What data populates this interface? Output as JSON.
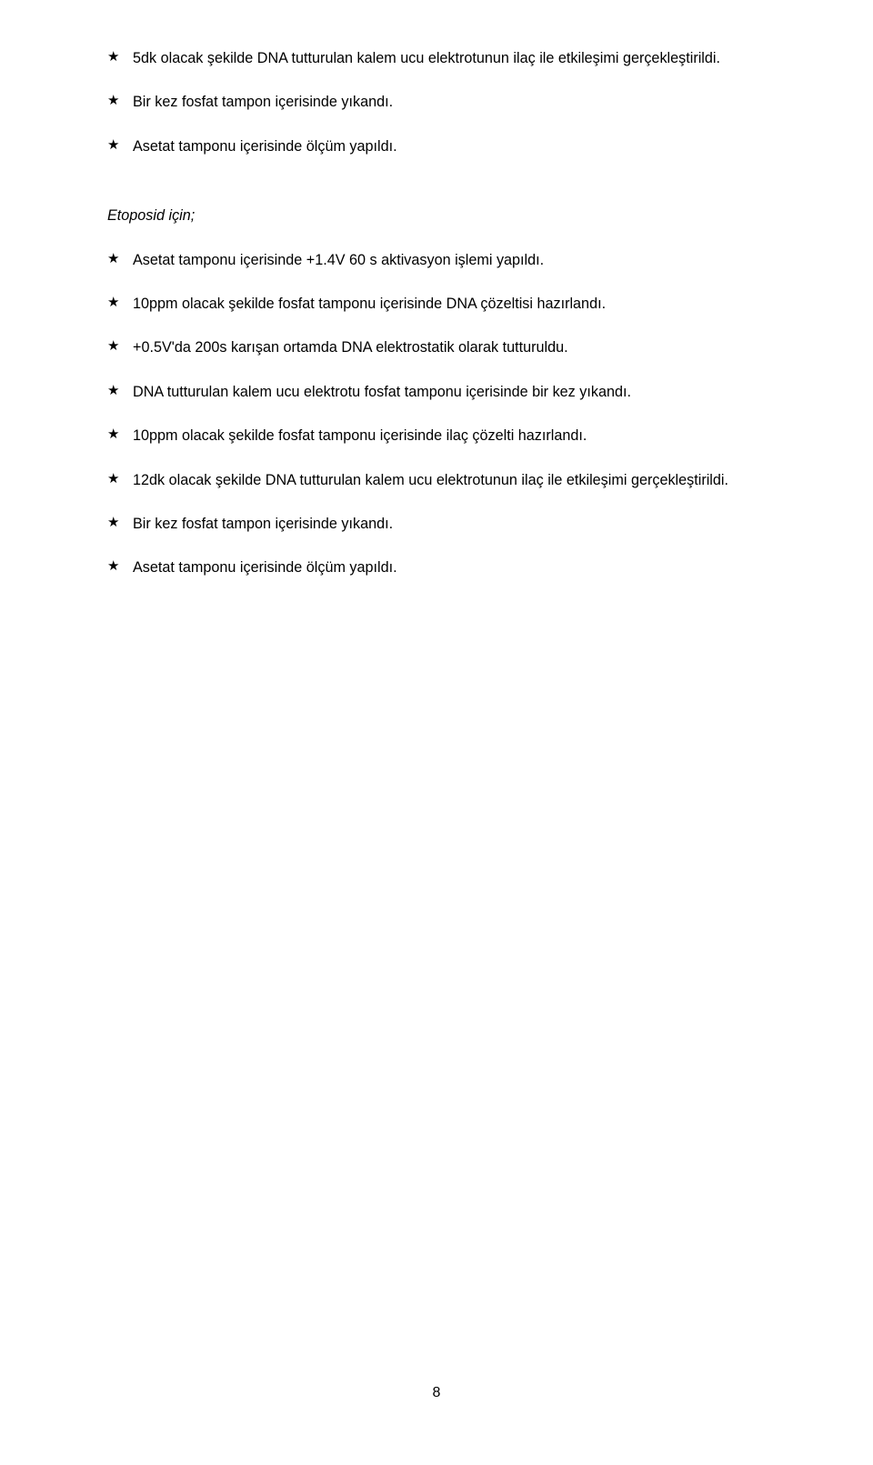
{
  "section1": {
    "items": [
      "5dk olacak şekilde DNA tutturulan kalem ucu elektrotunun ilaç ile etkileşimi gerçekleştirildi.",
      "Bir kez fosfat tampon içerisinde yıkandı.",
      "Asetat tamponu içerisinde ölçüm yapıldı."
    ]
  },
  "heading": "Etoposid için;",
  "section2": {
    "items": [
      "Asetat tamponu içerisinde +1.4V 60 s aktivasyon işlemi yapıldı.",
      "10ppm olacak şekilde fosfat tamponu içerisinde DNA çözeltisi hazırlandı.",
      "+0.5V'da 200s karışan ortamda DNA elektrostatik olarak tutturuldu.",
      "DNA tutturulan kalem ucu elektrotu fosfat tamponu içerisinde bir kez yıkandı.",
      "10ppm olacak şekilde fosfat tamponu içerisinde ilaç çözelti hazırlandı.",
      "12dk olacak şekilde DNA tutturulan kalem ucu elektrotunun ilaç ile etkileşimi gerçekleştirildi.",
      "Bir kez fosfat tampon içerisinde yıkandı.",
      "Asetat tamponu içerisinde ölçüm yapıldı."
    ]
  },
  "pageNumber": "8"
}
